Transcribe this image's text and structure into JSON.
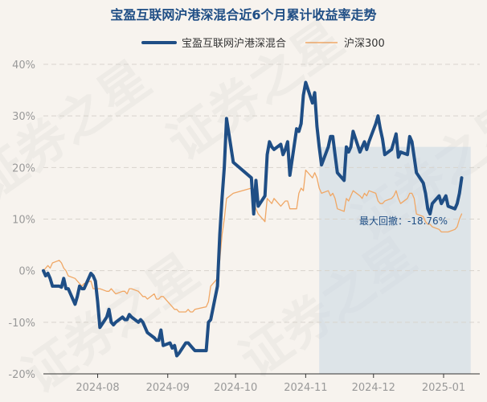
{
  "watermark_text": "证券之星",
  "chart_data": {
    "type": "line",
    "title": "宝盈互联网沪港深混合近6个月累计收益率走势",
    "xlabel": "",
    "ylabel": "",
    "ylim": [
      -20,
      40
    ],
    "y_ticks": [
      "-20%",
      "-10%",
      "0%",
      "10%",
      "20%",
      "30%",
      "40%"
    ],
    "x_ticks": [
      "2024-08",
      "2024-09",
      "2024-10",
      "2024-11",
      "2024-12",
      "2025-01"
    ],
    "x_tick_dates": [
      "2024-08-01",
      "2024-09-01",
      "2024-10-01",
      "2024-11-01",
      "2024-12-01",
      "2025-01-01"
    ],
    "x_range": [
      "2024-07-08",
      "2025-01-17"
    ],
    "legend_position": "top-center",
    "grid": true,
    "annotation": {
      "text": "最大回撤：-18.76%",
      "shade_start": "2024-11-07",
      "shade_end": "2025-01-13",
      "shade_bottom": -20
    },
    "series": [
      {
        "name": "宝盈互联网沪港深混合",
        "color": "#1f4e85",
        "points": [
          [
            "2024-07-08",
            0
          ],
          [
            "2024-07-09",
            -1
          ],
          [
            "2024-07-10",
            -0.5
          ],
          [
            "2024-07-11",
            -1.5
          ],
          [
            "2024-07-12",
            -3
          ],
          [
            "2024-07-15",
            -3
          ],
          [
            "2024-07-16",
            -3.2
          ],
          [
            "2024-07-17",
            -1.5
          ],
          [
            "2024-07-18",
            -3.5
          ],
          [
            "2024-07-19",
            -3.5
          ],
          [
            "2024-07-22",
            -6.5
          ],
          [
            "2024-07-23",
            -5
          ],
          [
            "2024-07-24",
            -3
          ],
          [
            "2024-07-25",
            -3.5
          ],
          [
            "2024-07-26",
            -3.5
          ],
          [
            "2024-07-29",
            -0.5
          ],
          [
            "2024-07-30",
            -1
          ],
          [
            "2024-07-31",
            -2
          ],
          [
            "2024-08-01",
            -6
          ],
          [
            "2024-08-02",
            -11
          ],
          [
            "2024-08-05",
            -9
          ],
          [
            "2024-08-06",
            -7.5
          ],
          [
            "2024-08-07",
            -10
          ],
          [
            "2024-08-08",
            -10.5
          ],
          [
            "2024-08-09",
            -10
          ],
          [
            "2024-08-12",
            -9
          ],
          [
            "2024-08-13",
            -9.5
          ],
          [
            "2024-08-14",
            -9.5
          ],
          [
            "2024-08-15",
            -8.5
          ],
          [
            "2024-08-16",
            -9
          ],
          [
            "2024-08-19",
            -10
          ],
          [
            "2024-08-20",
            -9.5
          ],
          [
            "2024-08-21",
            -10
          ],
          [
            "2024-08-22",
            -11
          ],
          [
            "2024-08-23",
            -12
          ],
          [
            "2024-08-26",
            -13
          ],
          [
            "2024-08-27",
            -13.5
          ],
          [
            "2024-08-28",
            -13.5
          ],
          [
            "2024-08-29",
            -11.5
          ],
          [
            "2024-08-30",
            -14.5
          ],
          [
            "2024-09-02",
            -14
          ],
          [
            "2024-09-03",
            -15
          ],
          [
            "2024-09-04",
            -14.5
          ],
          [
            "2024-09-05",
            -16.5
          ],
          [
            "2024-09-06",
            -16
          ],
          [
            "2024-09-09",
            -14
          ],
          [
            "2024-09-10",
            -14
          ],
          [
            "2024-09-11",
            -14.5
          ],
          [
            "2024-09-12",
            -15
          ],
          [
            "2024-09-13",
            -15.5
          ],
          [
            "2024-09-18",
            -15.5
          ],
          [
            "2024-09-19",
            -10
          ],
          [
            "2024-09-20",
            -9.5
          ],
          [
            "2024-09-23",
            -3
          ],
          [
            "2024-09-24",
            7
          ],
          [
            "2024-09-25",
            14
          ],
          [
            "2024-09-26",
            20
          ],
          [
            "2024-09-27",
            29.5
          ],
          [
            "2024-09-30",
            21
          ],
          [
            "2024-10-08",
            18
          ],
          [
            "2024-10-09",
            11
          ],
          [
            "2024-10-10",
            17.5
          ],
          [
            "2024-10-11",
            12.5
          ],
          [
            "2024-10-14",
            14.5
          ],
          [
            "2024-10-15",
            22.5
          ],
          [
            "2024-10-16",
            25
          ],
          [
            "2024-10-17",
            24
          ],
          [
            "2024-10-18",
            23.5
          ],
          [
            "2024-10-21",
            24.5
          ],
          [
            "2024-10-22",
            22.5
          ],
          [
            "2024-10-23",
            23.5
          ],
          [
            "2024-10-24",
            25
          ],
          [
            "2024-10-25",
            18.5
          ],
          [
            "2024-10-28",
            27.5
          ],
          [
            "2024-10-29",
            27
          ],
          [
            "2024-10-30",
            28.5
          ],
          [
            "2024-10-31",
            34
          ],
          [
            "2024-11-01",
            36.5
          ],
          [
            "2024-11-04",
            32.5
          ],
          [
            "2024-11-05",
            34.5
          ],
          [
            "2024-11-06",
            28
          ],
          [
            "2024-11-07",
            24
          ],
          [
            "2024-11-08",
            20.5
          ],
          [
            "2024-11-11",
            24
          ],
          [
            "2024-11-12",
            26
          ],
          [
            "2024-11-13",
            26
          ],
          [
            "2024-11-14",
            22.5
          ],
          [
            "2024-11-15",
            19
          ],
          [
            "2024-11-18",
            17.5
          ],
          [
            "2024-11-19",
            24
          ],
          [
            "2024-11-20",
            23
          ],
          [
            "2024-11-21",
            24
          ],
          [
            "2024-11-22",
            27
          ],
          [
            "2024-11-25",
            23
          ],
          [
            "2024-11-26",
            24
          ],
          [
            "2024-11-27",
            25
          ],
          [
            "2024-11-28",
            23.5
          ],
          [
            "2024-11-29",
            25
          ],
          [
            "2024-12-02",
            28.5
          ],
          [
            "2024-12-03",
            30
          ],
          [
            "2024-12-04",
            27.5
          ],
          [
            "2024-12-05",
            25.5
          ],
          [
            "2024-12-06",
            22.5
          ],
          [
            "2024-12-09",
            23.5
          ],
          [
            "2024-12-10",
            25
          ],
          [
            "2024-12-11",
            26.5
          ],
          [
            "2024-12-12",
            22
          ],
          [
            "2024-12-13",
            23
          ],
          [
            "2024-12-16",
            22.5
          ],
          [
            "2024-12-17",
            26
          ],
          [
            "2024-12-18",
            25
          ],
          [
            "2024-12-19",
            22
          ],
          [
            "2024-12-20",
            19
          ],
          [
            "2024-12-23",
            17
          ],
          [
            "2024-12-24",
            15
          ],
          [
            "2024-12-25",
            12
          ],
          [
            "2024-12-26",
            11
          ],
          [
            "2024-12-27",
            13
          ],
          [
            "2024-12-30",
            14.5
          ],
          [
            "2024-12-31",
            13
          ],
          [
            "2025-01-02",
            14.5
          ],
          [
            "2025-01-03",
            12.5
          ],
          [
            "2025-01-06",
            12
          ],
          [
            "2025-01-07",
            13
          ],
          [
            "2025-01-08",
            15
          ],
          [
            "2025-01-09",
            18
          ]
        ]
      },
      {
        "name": "沪深300",
        "color": "#f0a765",
        "points": [
          [
            "2024-07-08",
            0
          ],
          [
            "2024-07-09",
            0.5
          ],
          [
            "2024-07-10",
            1
          ],
          [
            "2024-07-11",
            0.5
          ],
          [
            "2024-07-12",
            1.5
          ],
          [
            "2024-07-15",
            2
          ],
          [
            "2024-07-16",
            1.5
          ],
          [
            "2024-07-17",
            0.5
          ],
          [
            "2024-07-18",
            0
          ],
          [
            "2024-07-19",
            -1
          ],
          [
            "2024-07-22",
            -1.5
          ],
          [
            "2024-07-23",
            -2
          ],
          [
            "2024-07-24",
            -2.5
          ],
          [
            "2024-07-25",
            -3
          ],
          [
            "2024-07-26",
            -2.5
          ],
          [
            "2024-07-29",
            -2
          ],
          [
            "2024-07-30",
            -3.5
          ],
          [
            "2024-07-31",
            -3.5
          ],
          [
            "2024-08-01",
            -3.5
          ],
          [
            "2024-08-02",
            -3.5
          ],
          [
            "2024-08-05",
            -4
          ],
          [
            "2024-08-06",
            -4
          ],
          [
            "2024-08-07",
            -3.5
          ],
          [
            "2024-08-08",
            -4
          ],
          [
            "2024-08-09",
            -4.5
          ],
          [
            "2024-08-12",
            -4
          ],
          [
            "2024-08-13",
            -4
          ],
          [
            "2024-08-14",
            -4.5
          ],
          [
            "2024-08-15",
            -3.5
          ],
          [
            "2024-08-16",
            -3.5
          ],
          [
            "2024-08-19",
            -4
          ],
          [
            "2024-08-20",
            -4.5
          ],
          [
            "2024-08-21",
            -5
          ],
          [
            "2024-08-22",
            -5
          ],
          [
            "2024-08-23",
            -5.5
          ],
          [
            "2024-08-26",
            -4.5
          ],
          [
            "2024-08-27",
            -5.5
          ],
          [
            "2024-08-28",
            -5.5
          ],
          [
            "2024-08-29",
            -5
          ],
          [
            "2024-08-30",
            -5
          ],
          [
            "2024-09-02",
            -6.5
          ],
          [
            "2024-09-03",
            -7
          ],
          [
            "2024-09-04",
            -7.5
          ],
          [
            "2024-09-05",
            -7.5
          ],
          [
            "2024-09-06",
            -8
          ],
          [
            "2024-09-09",
            -8
          ],
          [
            "2024-09-10",
            -7.5
          ],
          [
            "2024-09-11",
            -8
          ],
          [
            "2024-09-12",
            -8
          ],
          [
            "2024-09-13",
            -7.5
          ],
          [
            "2024-09-18",
            -7
          ],
          [
            "2024-09-19",
            -6
          ],
          [
            "2024-09-20",
            -3
          ],
          [
            "2024-09-23",
            -1.5
          ],
          [
            "2024-09-24",
            2
          ],
          [
            "2024-09-25",
            7
          ],
          [
            "2024-09-26",
            10
          ],
          [
            "2024-09-27",
            14
          ],
          [
            "2024-09-30",
            15
          ],
          [
            "2024-10-08",
            16
          ],
          [
            "2024-10-09",
            13
          ],
          [
            "2024-10-10",
            12
          ],
          [
            "2024-10-11",
            11
          ],
          [
            "2024-10-14",
            9.5
          ],
          [
            "2024-10-15",
            14
          ],
          [
            "2024-10-16",
            13.5
          ],
          [
            "2024-10-17",
            13
          ],
          [
            "2024-10-18",
            14
          ],
          [
            "2024-10-21",
            12.5
          ],
          [
            "2024-10-22",
            13
          ],
          [
            "2024-10-23",
            13.5
          ],
          [
            "2024-10-24",
            13.5
          ],
          [
            "2024-10-25",
            12
          ],
          [
            "2024-10-28",
            12
          ],
          [
            "2024-10-29",
            15
          ],
          [
            "2024-10-30",
            16
          ],
          [
            "2024-10-31",
            15.5
          ],
          [
            "2024-11-01",
            19.5
          ],
          [
            "2024-11-04",
            18
          ],
          [
            "2024-11-05",
            19
          ],
          [
            "2024-11-06",
            18
          ],
          [
            "2024-11-07",
            16
          ],
          [
            "2024-11-08",
            15
          ],
          [
            "2024-11-11",
            15.5
          ],
          [
            "2024-11-12",
            14.5
          ],
          [
            "2024-11-13",
            15
          ],
          [
            "2024-11-14",
            14
          ],
          [
            "2024-11-15",
            12
          ],
          [
            "2024-11-18",
            11.5
          ],
          [
            "2024-11-19",
            14
          ],
          [
            "2024-11-20",
            13.5
          ],
          [
            "2024-11-21",
            14.5
          ],
          [
            "2024-11-22",
            15.5
          ],
          [
            "2024-11-25",
            14.5
          ],
          [
            "2024-11-26",
            14
          ],
          [
            "2024-11-27",
            15
          ],
          [
            "2024-11-28",
            14.5
          ],
          [
            "2024-11-29",
            15.5
          ],
          [
            "2024-12-02",
            15
          ],
          [
            "2024-12-03",
            13.5
          ],
          [
            "2024-12-04",
            13
          ],
          [
            "2024-12-05",
            13
          ],
          [
            "2024-12-06",
            13.5
          ],
          [
            "2024-12-09",
            14
          ],
          [
            "2024-12-10",
            14.5
          ],
          [
            "2024-12-11",
            15.5
          ],
          [
            "2024-12-12",
            14
          ],
          [
            "2024-12-13",
            13
          ],
          [
            "2024-12-16",
            14
          ],
          [
            "2024-12-17",
            15
          ],
          [
            "2024-12-18",
            15
          ],
          [
            "2024-12-19",
            14
          ],
          [
            "2024-12-20",
            11
          ],
          [
            "2024-12-23",
            10.5
          ],
          [
            "2024-12-24",
            9.5
          ],
          [
            "2024-12-25",
            9
          ],
          [
            "2024-12-26",
            9
          ],
          [
            "2024-12-27",
            8.5
          ],
          [
            "2024-12-30",
            8
          ],
          [
            "2024-12-31",
            7.5
          ],
          [
            "2025-01-02",
            7.5
          ],
          [
            "2025-01-03",
            7.5
          ],
          [
            "2025-01-06",
            8
          ],
          [
            "2025-01-07",
            8.5
          ],
          [
            "2025-01-08",
            10
          ],
          [
            "2025-01-09",
            11
          ]
        ]
      }
    ]
  }
}
